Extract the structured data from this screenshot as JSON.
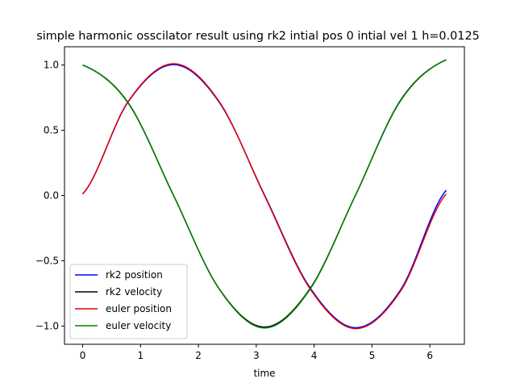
{
  "chart_data": {
    "type": "line",
    "title": "simple harmonic osscilator result using rk2 intial pos 0 intial vel 1 h=0.0125",
    "xlabel": "time",
    "ylabel": "",
    "xlim": [
      -0.314,
      6.597
    ],
    "ylim": [
      -1.14,
      1.14
    ],
    "xticks": [
      0,
      1,
      2,
      3,
      4,
      5,
      6
    ],
    "xtick_labels": [
      "0",
      "1",
      "2",
      "3",
      "4",
      "5",
      "6"
    ],
    "yticks": [
      -1.0,
      -0.5,
      0.0,
      0.5,
      1.0
    ],
    "ytick_labels": [
      "−1.0",
      "−0.5",
      "0.0",
      "0.5",
      "1.0"
    ],
    "grid": false,
    "legend_position": "lower-left",
    "x_range": [
      0,
      6.2832
    ],
    "series": [
      {
        "name": "rk2 position",
        "color": "#0000ff",
        "x": [
          0,
          0.7854,
          1.5708,
          2.3562,
          3.1416,
          3.927,
          4.7124,
          5.4978,
          6.2832
        ],
        "y": [
          0.0125,
          0.717,
          1.003,
          0.717,
          0.005,
          -0.705,
          -1.013,
          -0.72,
          0.04
        ]
      },
      {
        "name": "rk2 velocity",
        "color": "#000000",
        "x": [
          0,
          0.7854,
          1.5708,
          2.3562,
          3.1416,
          3.927,
          4.7124,
          5.4978,
          6.2832
        ],
        "y": [
          1.0,
          0.711,
          0.0,
          -0.713,
          -1.008,
          -0.715,
          0.0,
          0.73,
          1.04
        ]
      },
      {
        "name": "euler position",
        "color": "#e00000",
        "x": [
          0,
          0.7854,
          1.5708,
          2.3562,
          3.1416,
          3.927,
          4.7124,
          5.4978,
          6.2832
        ],
        "y": [
          0.0125,
          0.72,
          1.01,
          0.722,
          0.0,
          -0.713,
          -1.02,
          -0.73,
          0.012
        ]
      },
      {
        "name": "euler velocity",
        "color": "#008000",
        "x": [
          0,
          0.7854,
          1.5708,
          2.3562,
          3.1416,
          3.927,
          4.7124,
          5.4978,
          6.2832
        ],
        "y": [
          1.0,
          0.708,
          0.0,
          -0.715,
          -1.015,
          -0.72,
          0.0,
          0.734,
          1.04
        ]
      }
    ]
  }
}
